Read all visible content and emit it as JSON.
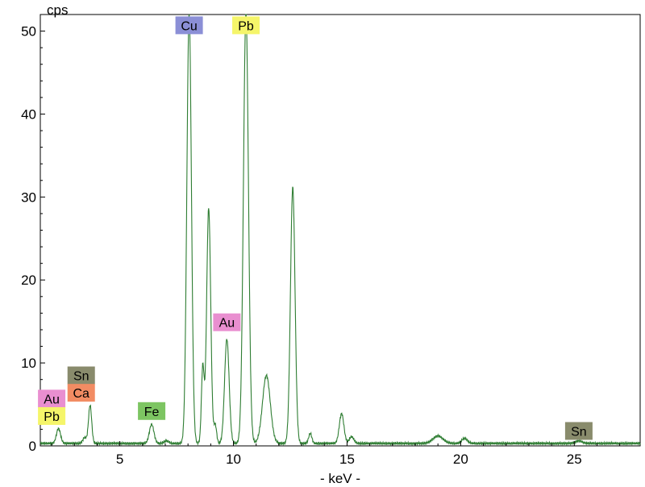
{
  "chart_data": {
    "type": "line",
    "title": "",
    "xlabel": "- keV -",
    "ylabel": "cps",
    "xlim": [
      1.5,
      27.9
    ],
    "ylim": [
      0,
      52
    ],
    "grid": false,
    "x_ticks": [
      5,
      10,
      15,
      20,
      25
    ],
    "y_ticks": [
      0,
      10,
      20,
      30,
      40,
      50
    ],
    "x_tick_labels": [
      "5",
      "10",
      "15",
      "20",
      "25"
    ],
    "y_tick_labels": [
      "0",
      "10",
      "20",
      "30",
      "40",
      "50"
    ],
    "series": [
      {
        "color": "#2e7d32",
        "background": 0.3,
        "peaks": [
          {
            "x": 2.3,
            "height": 1.8,
            "width": 0.09
          },
          {
            "x": 3.45,
            "height": 0.7,
            "width": 0.08
          },
          {
            "x": 3.69,
            "height": 4.6,
            "width": 0.07
          },
          {
            "x": 6.4,
            "height": 2.3,
            "width": 0.1
          },
          {
            "x": 7.05,
            "height": 0.3,
            "width": 0.1
          },
          {
            "x": 8.05,
            "height": 52.0,
            "width": 0.1
          },
          {
            "x": 8.65,
            "height": 9.2,
            "width": 0.06
          },
          {
            "x": 8.91,
            "height": 28.4,
            "width": 0.09
          },
          {
            "x": 9.2,
            "height": 2.2,
            "width": 0.06
          },
          {
            "x": 9.71,
            "height": 12.6,
            "width": 0.1
          },
          {
            "x": 10.55,
            "height": 52.0,
            "width": 0.11
          },
          {
            "x": 11.45,
            "height": 8.2,
            "width": 0.17
          },
          {
            "x": 12.61,
            "height": 30.9,
            "width": 0.1
          },
          {
            "x": 13.38,
            "height": 1.2,
            "width": 0.07
          },
          {
            "x": 14.76,
            "height": 3.6,
            "width": 0.1
          },
          {
            "x": 15.2,
            "height": 0.8,
            "width": 0.1
          },
          {
            "x": 19.0,
            "height": 0.9,
            "width": 0.22
          },
          {
            "x": 20.17,
            "height": 0.6,
            "width": 0.12
          },
          {
            "x": 25.2,
            "height": 0.3,
            "width": 0.15
          }
        ]
      }
    ],
    "annotations": [
      {
        "text": "Cu",
        "color": "#8b8fd6",
        "x": 8.05,
        "y": 50.7
      },
      {
        "text": "Pb",
        "color": "#f5f56a",
        "x": 10.55,
        "y": 50.7
      },
      {
        "text": "Au",
        "color": "#e98fd0",
        "x": 9.71,
        "y": 14.9
      },
      {
        "text": "Sn",
        "color": "#898b6c",
        "x": 3.3,
        "y": 8.5
      },
      {
        "text": "Ca",
        "color": "#f28c63",
        "x": 3.3,
        "y": 6.4
      },
      {
        "text": "Au",
        "color": "#e98fd0",
        "x": 2.0,
        "y": 5.7
      },
      {
        "text": "Pb",
        "color": "#f5f56a",
        "x": 2.0,
        "y": 3.6
      },
      {
        "text": "Fe",
        "color": "#7dc562",
        "x": 6.4,
        "y": 4.2
      },
      {
        "text": "Sn",
        "color": "#898b6c",
        "x": 25.2,
        "y": 1.8
      }
    ]
  }
}
